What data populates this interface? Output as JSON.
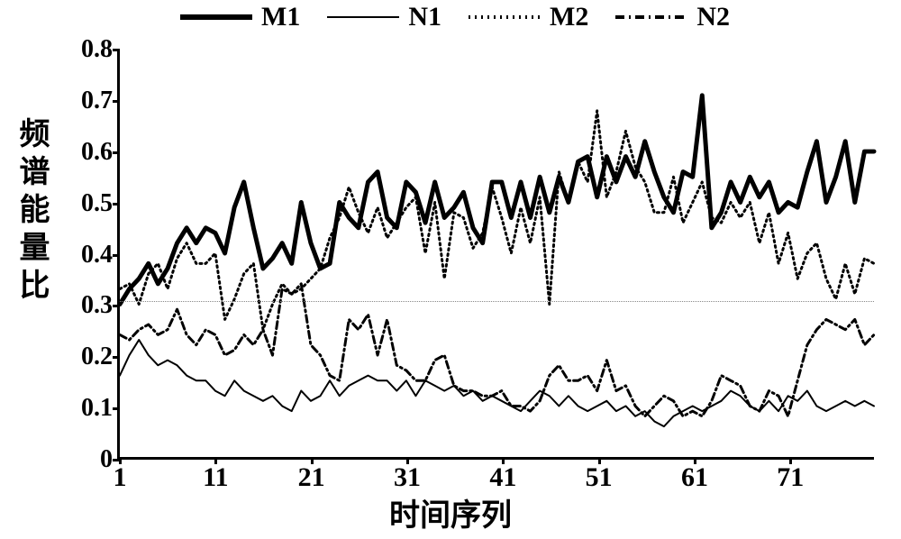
{
  "chart": {
    "type": "line",
    "title": "",
    "x_label": "时间序列",
    "y_label": "频谱能量比",
    "background_color": "#ffffff",
    "border_color": "#000000",
    "text_color": "#000000",
    "label_fontsize": 34,
    "tick_fontsize": 28,
    "xlim": [
      1,
      80
    ],
    "ylim": [
      0,
      0.8
    ],
    "x_ticks": [
      1,
      11,
      21,
      31,
      41,
      51,
      61,
      71
    ],
    "y_ticks": [
      0,
      0.1,
      0.2,
      0.3,
      0.4,
      0.5,
      0.6,
      0.7,
      0.8
    ],
    "reference_line_y": 0.31,
    "reference_line_color": "#888888",
    "series": [
      {
        "name": "M1",
        "color": "#000000",
        "line_width": 5,
        "dash": "none",
        "data": [
          0.3,
          0.33,
          0.35,
          0.38,
          0.34,
          0.37,
          0.42,
          0.45,
          0.42,
          0.45,
          0.44,
          0.4,
          0.49,
          0.54,
          0.45,
          0.37,
          0.39,
          0.42,
          0.38,
          0.5,
          0.42,
          0.37,
          0.38,
          0.5,
          0.47,
          0.45,
          0.54,
          0.56,
          0.47,
          0.45,
          0.54,
          0.52,
          0.46,
          0.54,
          0.47,
          0.49,
          0.52,
          0.45,
          0.42,
          0.54,
          0.54,
          0.47,
          0.54,
          0.47,
          0.55,
          0.48,
          0.55,
          0.5,
          0.58,
          0.59,
          0.51,
          0.59,
          0.54,
          0.59,
          0.55,
          0.62,
          0.56,
          0.51,
          0.48,
          0.56,
          0.55,
          0.71,
          0.45,
          0.48,
          0.54,
          0.5,
          0.55,
          0.51,
          0.54,
          0.48,
          0.5,
          0.49,
          0.56,
          0.62,
          0.5,
          0.55,
          0.62,
          0.5,
          0.6,
          0.6
        ]
      },
      {
        "name": "N1",
        "color": "#000000",
        "line_width": 2,
        "dash": "none",
        "data": [
          0.16,
          0.2,
          0.23,
          0.2,
          0.18,
          0.19,
          0.18,
          0.16,
          0.15,
          0.15,
          0.13,
          0.12,
          0.15,
          0.13,
          0.12,
          0.11,
          0.12,
          0.1,
          0.09,
          0.13,
          0.11,
          0.12,
          0.15,
          0.12,
          0.14,
          0.15,
          0.16,
          0.15,
          0.15,
          0.13,
          0.15,
          0.12,
          0.15,
          0.14,
          0.13,
          0.14,
          0.12,
          0.13,
          0.11,
          0.12,
          0.11,
          0.1,
          0.09,
          0.11,
          0.13,
          0.12,
          0.1,
          0.12,
          0.1,
          0.09,
          0.1,
          0.11,
          0.09,
          0.1,
          0.08,
          0.09,
          0.07,
          0.06,
          0.08,
          0.09,
          0.1,
          0.09,
          0.1,
          0.11,
          0.13,
          0.12,
          0.1,
          0.09,
          0.11,
          0.09,
          0.12,
          0.11,
          0.13,
          0.1,
          0.09,
          0.1,
          0.11,
          0.1,
          0.11,
          0.1
        ]
      },
      {
        "name": "M2",
        "color": "#000000",
        "line_width": 3,
        "dash": "2,4",
        "data": [
          0.33,
          0.34,
          0.3,
          0.36,
          0.38,
          0.33,
          0.39,
          0.42,
          0.38,
          0.38,
          0.4,
          0.27,
          0.31,
          0.36,
          0.38,
          0.25,
          0.3,
          0.34,
          0.32,
          0.33,
          0.35,
          0.37,
          0.43,
          0.47,
          0.53,
          0.48,
          0.44,
          0.49,
          0.43,
          0.46,
          0.49,
          0.51,
          0.4,
          0.5,
          0.35,
          0.48,
          0.47,
          0.41,
          0.44,
          0.53,
          0.47,
          0.4,
          0.49,
          0.42,
          0.51,
          0.3,
          0.56,
          0.5,
          0.58,
          0.54,
          0.68,
          0.51,
          0.56,
          0.64,
          0.57,
          0.54,
          0.48,
          0.48,
          0.55,
          0.46,
          0.5,
          0.54,
          0.47,
          0.46,
          0.5,
          0.47,
          0.5,
          0.42,
          0.48,
          0.38,
          0.44,
          0.35,
          0.4,
          0.42,
          0.35,
          0.31,
          0.38,
          0.32,
          0.39,
          0.38
        ]
      },
      {
        "name": "N2",
        "color": "#000000",
        "line_width": 3,
        "dash": "8,4,2,4",
        "data": [
          0.24,
          0.23,
          0.25,
          0.26,
          0.24,
          0.25,
          0.29,
          0.24,
          0.22,
          0.25,
          0.24,
          0.2,
          0.21,
          0.24,
          0.22,
          0.25,
          0.2,
          0.33,
          0.32,
          0.34,
          0.22,
          0.2,
          0.16,
          0.15,
          0.27,
          0.25,
          0.28,
          0.2,
          0.27,
          0.18,
          0.17,
          0.15,
          0.15,
          0.19,
          0.2,
          0.14,
          0.13,
          0.13,
          0.12,
          0.12,
          0.13,
          0.1,
          0.1,
          0.09,
          0.11,
          0.16,
          0.18,
          0.15,
          0.15,
          0.16,
          0.13,
          0.19,
          0.13,
          0.14,
          0.1,
          0.08,
          0.1,
          0.12,
          0.11,
          0.08,
          0.09,
          0.08,
          0.11,
          0.16,
          0.15,
          0.14,
          0.1,
          0.09,
          0.13,
          0.12,
          0.08,
          0.15,
          0.22,
          0.25,
          0.27,
          0.26,
          0.25,
          0.27,
          0.22,
          0.24
        ]
      }
    ],
    "legend_labels": {
      "m1": "M1",
      "n1": "N1",
      "m2": "M2",
      "n2": "N2"
    }
  }
}
